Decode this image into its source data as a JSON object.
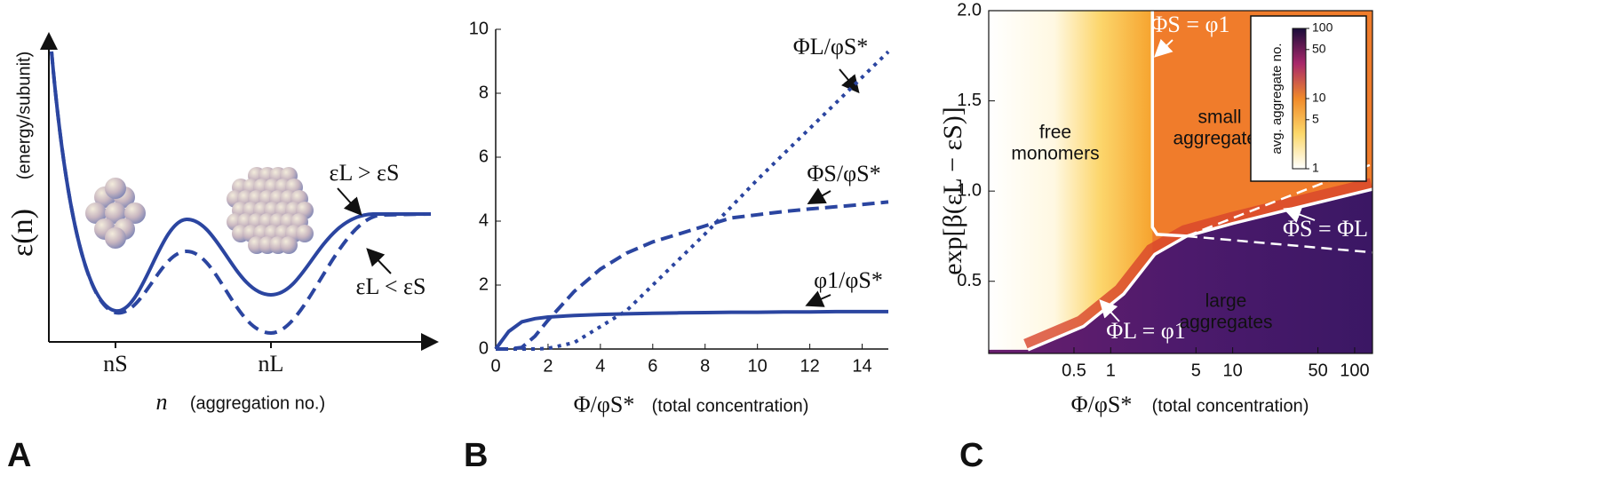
{
  "chart_data": [
    {
      "type": "diagram",
      "panel_label": "A",
      "ylabel": "ε(n)",
      "ylabel_note": "(energy/subunit)",
      "xlabel": "n",
      "xlabel_note": "(aggregation no.)",
      "xtick_labels": [
        "nS",
        "nL"
      ],
      "curve_labels": [
        "εL > εS",
        "εL < εS"
      ]
    },
    {
      "type": "line",
      "panel_label": "B",
      "xlabel": "Φ/φS*",
      "xlabel_note": "(total concentration)",
      "x": [
        0,
        0.5,
        1,
        1.5,
        2,
        3,
        4,
        5,
        6,
        7,
        8,
        9,
        10,
        11,
        12,
        13,
        14,
        15
      ],
      "xlim": [
        0,
        15
      ],
      "ylim": [
        0,
        10
      ],
      "xticks": [
        0,
        2,
        4,
        6,
        8,
        10,
        12,
        14
      ],
      "yticks": [
        0,
        2,
        4,
        6,
        8,
        10
      ],
      "series": [
        {
          "name": "ΦL/φS*",
          "color": "#2b45a0",
          "style": "dotted",
          "values": [
            0,
            0,
            0,
            0,
            0.02,
            0.2,
            0.7,
            1.2,
            2.0,
            2.8,
            3.6,
            4.45,
            5.3,
            6.1,
            6.9,
            7.7,
            8.5,
            9.3
          ]
        },
        {
          "name": "ΦS/φS*",
          "color": "#2b45a0",
          "style": "dashed",
          "values": [
            0,
            0,
            0.05,
            0.4,
            0.9,
            1.8,
            2.5,
            3.0,
            3.35,
            3.6,
            3.85,
            4.1,
            4.2,
            4.3,
            4.38,
            4.45,
            4.52,
            4.6
          ]
        },
        {
          "name": "φ1/φS*",
          "color": "#2b45a0",
          "style": "solid",
          "values": [
            0,
            0.55,
            0.85,
            0.95,
            1.0,
            1.05,
            1.08,
            1.1,
            1.12,
            1.13,
            1.14,
            1.15,
            1.15,
            1.16,
            1.16,
            1.17,
            1.17,
            1.17
          ]
        }
      ]
    },
    {
      "type": "heatmap",
      "panel_label": "C",
      "xlabel": "Φ/φS*",
      "xlabel_note": "(total concentration)",
      "ylabel": "exp[β(εL − εS)]",
      "xscale": "log",
      "xlim": [
        0.1,
        140
      ],
      "ylim": [
        0.1,
        2
      ],
      "xticks": [
        0.5,
        1,
        5,
        10,
        50,
        100
      ],
      "yticks": [
        0.5,
        {
          "value": 1,
          "label": "1.0"
        },
        1.5,
        {
          "value": 2,
          "label": "2.0"
        }
      ],
      "regions": [
        [
          "free",
          "monomers"
        ],
        [
          "small",
          "aggregates"
        ],
        [
          "large",
          "aggregates"
        ]
      ],
      "colorbar": {
        "label": "avg. aggregate no.",
        "scale": "log",
        "lim": [
          1,
          100
        ],
        "ticks": [
          1,
          5,
          10,
          50,
          100
        ]
      },
      "boundaries": [
        {
          "name": "ΦS = φ1",
          "style": "solid",
          "x": [
            2.2,
            2.2,
            2.4,
            4.2
          ],
          "y": [
            2,
            0.8,
            0.76,
            0.75
          ]
        },
        {
          "name": "ΦS = ΦL",
          "style": "solid",
          "x": [
            4.2,
            10,
            30,
            140
          ],
          "y": [
            0.75,
            0.82,
            0.9,
            1.01
          ]
        },
        {
          "name": "ΦL = φ1",
          "style": "solid",
          "x": [
            0.21,
            0.6,
            1.28,
            2.3,
            4.2
          ],
          "y": [
            0.12,
            0.25,
            0.43,
            0.65,
            0.75
          ]
        },
        {
          "style": "dashed",
          "x": [
            4.2,
            20,
            140
          ],
          "y": [
            0.75,
            0.93,
            1.15
          ]
        },
        {
          "style": "dashed",
          "x": [
            4.2,
            20,
            140
          ],
          "y": [
            0.75,
            0.71,
            0.66
          ]
        }
      ]
    }
  ]
}
